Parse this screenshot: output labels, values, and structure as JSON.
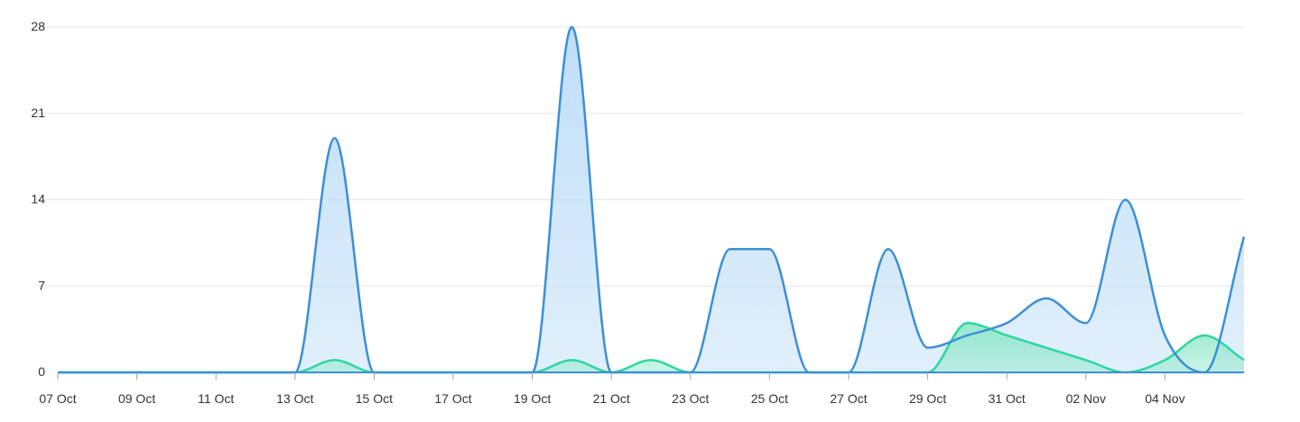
{
  "chart_data": {
    "type": "area",
    "title": "",
    "xlabel": "",
    "ylabel": "",
    "ylim": [
      0,
      28
    ],
    "yticks": [
      0,
      7,
      14,
      21,
      28
    ],
    "grid": true,
    "x": [
      "07 Oct",
      "08 Oct",
      "09 Oct",
      "10 Oct",
      "11 Oct",
      "12 Oct",
      "13 Oct",
      "14 Oct",
      "15 Oct",
      "16 Oct",
      "17 Oct",
      "18 Oct",
      "19 Oct",
      "20 Oct",
      "21 Oct",
      "22 Oct",
      "23 Oct",
      "24 Oct",
      "25 Oct",
      "26 Oct",
      "27 Oct",
      "28 Oct",
      "29 Oct",
      "30 Oct",
      "31 Oct",
      "01 Nov",
      "02 Nov",
      "03 Nov",
      "04 Nov",
      "05 Nov",
      "06 Nov"
    ],
    "xtick_labels": [
      "07 Oct",
      "09 Oct",
      "11 Oct",
      "13 Oct",
      "15 Oct",
      "17 Oct",
      "19 Oct",
      "21 Oct",
      "23 Oct",
      "25 Oct",
      "27 Oct",
      "29 Oct",
      "31 Oct",
      "02 Nov",
      "04 Nov"
    ],
    "series": [
      {
        "values": [
          0,
          0,
          0,
          0,
          0,
          0,
          0,
          19,
          0,
          0,
          0,
          0,
          0,
          28,
          0,
          0,
          0,
          10,
          10,
          0,
          0,
          10,
          2,
          3,
          4,
          6,
          4,
          14,
          3,
          0,
          11
        ],
        "color": "#3d8fd6",
        "fill": "#bcdcf7"
      },
      {
        "values": [
          0,
          0,
          0,
          0,
          0,
          0,
          0,
          1,
          0,
          0,
          0,
          0,
          0,
          1,
          0,
          1,
          0,
          0,
          0,
          0,
          0,
          0,
          0,
          4,
          3,
          2,
          1,
          0,
          1,
          3,
          1
        ],
        "color": "#2ed6a0",
        "fill": "#8fe8c8"
      }
    ]
  }
}
